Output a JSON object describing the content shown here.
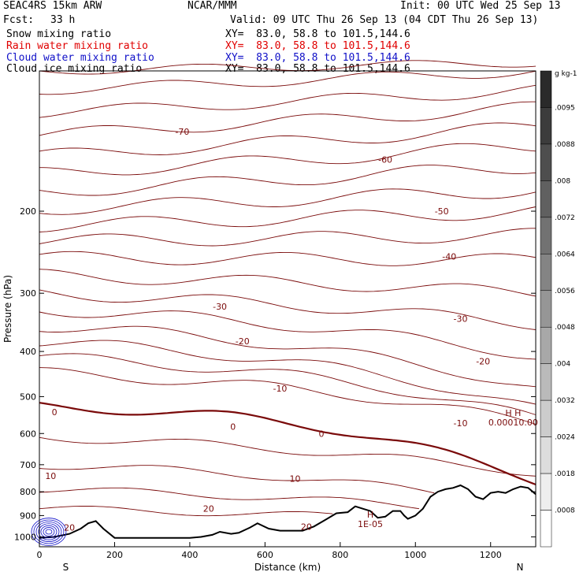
{
  "header": {
    "model": "SEAC4RS 15km ARW",
    "center": "NCAR/MMM",
    "init": "Init: 00 UTC Wed 25 Sep 13",
    "fcst_label": "Fcst:",
    "fcst_value": "33 h",
    "valid": "Valid: 09 UTC Thu 26 Sep 13 (04 CDT Thu 26 Sep 13)"
  },
  "fields": [
    {
      "name": "Snow mixing ratio",
      "xy": "XY=  83.0, 58.8 to 101.5,144.6",
      "color": "#000000"
    },
    {
      "name": "Rain water mixing ratio",
      "xy": "XY=  83.0, 58.8 to 101.5,144.6",
      "color": "#e00000"
    },
    {
      "name": "Cloud water mixing ratio",
      "xy": "XY=  83.0, 58.8 to 101.5,144.6",
      "color": "#1010c8"
    },
    {
      "name": "Cloud ice mixing ratio",
      "xy": "XY=  83.0, 58.8 to 101.5,144.6",
      "color": "#000000"
    }
  ],
  "chart_data": {
    "type": "contour cross-section",
    "xlabel": "Distance (km)",
    "ylabel": "Pressure (hPa)",
    "xlim": [
      0,
      1320
    ],
    "ylim": [
      1050,
      100
    ],
    "y_scale": "log",
    "x_ticks": [
      0,
      200,
      400,
      600,
      800,
      1000,
      1200
    ],
    "y_ticks": [
      200,
      300,
      400,
      500,
      600,
      700,
      800,
      900,
      1000
    ],
    "endpoint_labels": {
      "left": "S",
      "right": "N"
    },
    "temperature_contours": {
      "color": "#7a0a0a",
      "levels": [
        -70,
        -60,
        -50,
        -40,
        -30,
        -20,
        -10,
        0,
        10,
        20
      ],
      "labels": [
        {
          "text": "-70",
          "x": 380,
          "p": 135
        },
        {
          "text": "-60",
          "x": 920,
          "p": 155
        },
        {
          "text": "-50",
          "x": 1070,
          "p": 200
        },
        {
          "text": "-40",
          "x": 1090,
          "p": 250
        },
        {
          "text": "-30",
          "x": 480,
          "p": 320
        },
        {
          "text": "-30",
          "x": 1120,
          "p": 340
        },
        {
          "text": "-20",
          "x": 540,
          "p": 380
        },
        {
          "text": "-20",
          "x": 1180,
          "p": 420
        },
        {
          "text": "-10",
          "x": 640,
          "p": 480
        },
        {
          "text": "-10",
          "x": 1120,
          "p": 570
        },
        {
          "text": "0",
          "x": 40,
          "p": 540
        },
        {
          "text": "0",
          "x": 515,
          "p": 580
        },
        {
          "text": "0",
          "x": 750,
          "p": 600
        },
        {
          "text": "10",
          "x": 30,
          "p": 740
        },
        {
          "text": "10",
          "x": 680,
          "p": 750
        },
        {
          "text": "20",
          "x": 450,
          "p": 870
        },
        {
          "text": "20",
          "x": 710,
          "p": 950
        },
        {
          "text": "20",
          "x": 80,
          "p": 955
        }
      ]
    },
    "high_markers": [
      {
        "text": "H",
        "x": 880,
        "p": 910,
        "value": "1E-05"
      },
      {
        "text": "H H",
        "x": 1260,
        "p": 550,
        "value": "0.00010.00"
      }
    ],
    "cloud_water_region": {
      "x_range": [
        0,
        100
      ],
      "p_range": [
        960,
        1000
      ],
      "color": "#1010c8"
    },
    "terrain": {
      "x": [
        0,
        40,
        80,
        110,
        130,
        150,
        170,
        200,
        300,
        400,
        430,
        460,
        480,
        510,
        530,
        560,
        580,
        610,
        640,
        700,
        730,
        760,
        790,
        820,
        840,
        860,
        880,
        900,
        920,
        940,
        960,
        970,
        980,
        1000,
        1020,
        1040,
        1060,
        1080,
        1100,
        1120,
        1140,
        1160,
        1180,
        1200,
        1220,
        1240,
        1260,
        1280,
        1300,
        1320
      ],
      "p": [
        1005,
        1000,
        985,
        960,
        935,
        925,
        960,
        1005,
        1005,
        1005,
        1000,
        990,
        975,
        985,
        980,
        955,
        935,
        960,
        970,
        970,
        950,
        920,
        890,
        885,
        860,
        870,
        880,
        910,
        905,
        880,
        880,
        900,
        915,
        900,
        870,
        820,
        800,
        790,
        785,
        775,
        790,
        820,
        830,
        805,
        800,
        805,
        790,
        780,
        785,
        810
      ]
    },
    "colorbar": {
      "unit": "g kg-1",
      "ticks": [
        ".0095",
        ".0088",
        ".008",
        ".0072",
        ".0064",
        ".0056",
        ".0048",
        ".004",
        ".0032",
        ".0024",
        ".0018",
        ".0008"
      ],
      "colors": [
        "#2a2a2a",
        "#3c3c3c",
        "#4e4e4e",
        "#606060",
        "#727272",
        "#848484",
        "#969696",
        "#a8a8a8",
        "#bababa",
        "#cccccc",
        "#dddddd",
        "#eeeeee",
        "#ffffff"
      ]
    }
  }
}
